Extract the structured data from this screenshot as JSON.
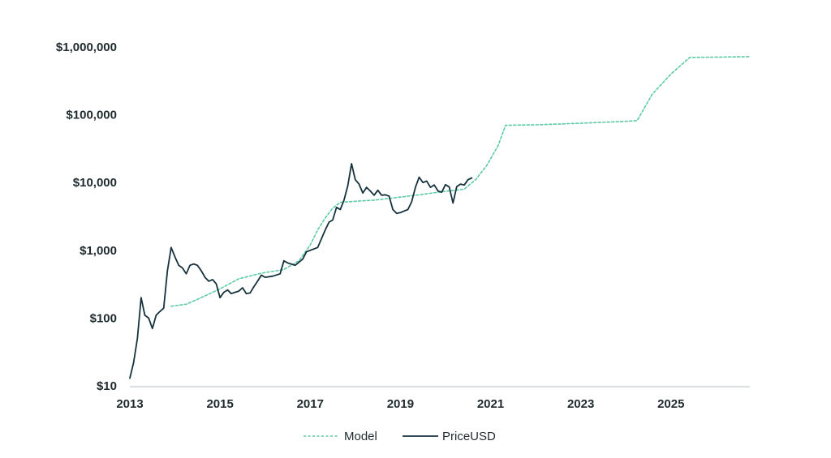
{
  "chart_data": {
    "type": "line",
    "title": "",
    "xlabel": "",
    "ylabel": "",
    "y_scale": "log",
    "ylim": [
      10,
      1000000
    ],
    "xlim": [
      "2013-01-01",
      "2026-10-01"
    ],
    "grid": false,
    "legend_position": "bottom-center",
    "colors": {
      "Model": "#5cc9a7",
      "PriceUSD": "#16323d",
      "axis": "#cfd4d6"
    },
    "line_styles": {
      "Model": "dashed",
      "PriceUSD": "solid"
    },
    "y_tick_labels": [
      "$10",
      "$100",
      "$1,000",
      "$10,000",
      "$100,000",
      "$1,000,000"
    ],
    "y_tick_values": [
      10,
      100,
      1000,
      10000,
      100000,
      1000000
    ],
    "x_tick_labels": [
      "2013",
      "2015",
      "2017",
      "2019",
      "2021",
      "2023",
      "2025"
    ],
    "x_tick_values": [
      "2013-01-01",
      "2015-01-01",
      "2017-01-01",
      "2019-01-01",
      "2021-01-01",
      "2023-01-01",
      "2025-01-01"
    ],
    "series": [
      {
        "name": "Model",
        "points": [
          [
            "2013-12-01",
            150
          ],
          [
            "2014-04-01",
            160
          ],
          [
            "2014-08-01",
            200
          ],
          [
            "2015-01-01",
            270
          ],
          [
            "2015-06-01",
            380
          ],
          [
            "2015-12-01",
            460
          ],
          [
            "2016-06-01",
            520
          ],
          [
            "2016-10-01",
            700
          ],
          [
            "2017-01-01",
            1200
          ],
          [
            "2017-03-01",
            2000
          ],
          [
            "2017-05-01",
            3000
          ],
          [
            "2017-07-01",
            4200
          ],
          [
            "2017-09-01",
            5100
          ],
          [
            "2018-01-01",
            5300
          ],
          [
            "2018-06-01",
            5500
          ],
          [
            "2018-12-01",
            6000
          ],
          [
            "2019-06-01",
            6600
          ],
          [
            "2019-12-01",
            7300
          ],
          [
            "2020-06-01",
            8000
          ],
          [
            "2020-09-01",
            11000
          ],
          [
            "2020-12-01",
            18000
          ],
          [
            "2021-03-01",
            35000
          ],
          [
            "2021-05-01",
            70000
          ],
          [
            "2022-01-01",
            71000
          ],
          [
            "2023-01-01",
            75000
          ],
          [
            "2024-01-01",
            80000
          ],
          [
            "2024-04-01",
            82000
          ],
          [
            "2024-08-01",
            200000
          ],
          [
            "2025-01-01",
            400000
          ],
          [
            "2025-06-01",
            700000
          ],
          [
            "2026-10-01",
            720000
          ]
        ]
      },
      {
        "name": "PriceUSD",
        "points": [
          [
            "2013-01-01",
            13
          ],
          [
            "2013-02-01",
            22
          ],
          [
            "2013-03-01",
            50
          ],
          [
            "2013-04-01",
            200
          ],
          [
            "2013-05-01",
            110
          ],
          [
            "2013-06-01",
            100
          ],
          [
            "2013-07-01",
            70
          ],
          [
            "2013-08-01",
            110
          ],
          [
            "2013-09-01",
            125
          ],
          [
            "2013-10-01",
            140
          ],
          [
            "2013-11-01",
            500
          ],
          [
            "2013-12-01",
            1100
          ],
          [
            "2014-01-01",
            800
          ],
          [
            "2014-02-01",
            600
          ],
          [
            "2014-03-01",
            550
          ],
          [
            "2014-04-01",
            450
          ],
          [
            "2014-05-01",
            600
          ],
          [
            "2014-06-01",
            630
          ],
          [
            "2014-07-01",
            600
          ],
          [
            "2014-08-01",
            500
          ],
          [
            "2014-09-01",
            400
          ],
          [
            "2014-10-01",
            350
          ],
          [
            "2014-11-01",
            370
          ],
          [
            "2014-12-01",
            320
          ],
          [
            "2015-01-01",
            200
          ],
          [
            "2015-02-01",
            240
          ],
          [
            "2015-03-01",
            260
          ],
          [
            "2015-04-01",
            230
          ],
          [
            "2015-05-01",
            240
          ],
          [
            "2015-06-01",
            250
          ],
          [
            "2015-07-01",
            280
          ],
          [
            "2015-08-01",
            230
          ],
          [
            "2015-09-01",
            235
          ],
          [
            "2015-10-01",
            290
          ],
          [
            "2015-11-01",
            350
          ],
          [
            "2015-12-01",
            430
          ],
          [
            "2016-01-01",
            400
          ],
          [
            "2016-03-01",
            415
          ],
          [
            "2016-05-01",
            450
          ],
          [
            "2016-06-01",
            700
          ],
          [
            "2016-07-01",
            650
          ],
          [
            "2016-09-01",
            600
          ],
          [
            "2016-11-01",
            740
          ],
          [
            "2016-12-01",
            950
          ],
          [
            "2017-01-01",
            1000
          ],
          [
            "2017-03-01",
            1100
          ],
          [
            "2017-05-01",
            2000
          ],
          [
            "2017-06-01",
            2600
          ],
          [
            "2017-07-01",
            2800
          ],
          [
            "2017-08-01",
            4300
          ],
          [
            "2017-09-01",
            4000
          ],
          [
            "2017-10-01",
            5500
          ],
          [
            "2017-11-01",
            9000
          ],
          [
            "2017-12-01",
            19000
          ],
          [
            "2018-01-01",
            11000
          ],
          [
            "2018-02-01",
            9500
          ],
          [
            "2018-03-01",
            7000
          ],
          [
            "2018-04-01",
            8500
          ],
          [
            "2018-05-01",
            7500
          ],
          [
            "2018-06-01",
            6500
          ],
          [
            "2018-07-01",
            7700
          ],
          [
            "2018-08-01",
            6500
          ],
          [
            "2018-09-01",
            6600
          ],
          [
            "2018-10-01",
            6300
          ],
          [
            "2018-11-01",
            4000
          ],
          [
            "2018-12-01",
            3500
          ],
          [
            "2019-01-01",
            3600
          ],
          [
            "2019-02-01",
            3800
          ],
          [
            "2019-03-01",
            4000
          ],
          [
            "2019-04-01",
            5200
          ],
          [
            "2019-05-01",
            8500
          ],
          [
            "2019-06-01",
            12000
          ],
          [
            "2019-07-01",
            10000
          ],
          [
            "2019-08-01",
            10500
          ],
          [
            "2019-09-01",
            8500
          ],
          [
            "2019-10-01",
            9200
          ],
          [
            "2019-11-01",
            7500
          ],
          [
            "2019-12-01",
            7200
          ],
          [
            "2020-01-01",
            9300
          ],
          [
            "2020-02-01",
            8600
          ],
          [
            "2020-03-01",
            5000
          ],
          [
            "2020-04-01",
            8700
          ],
          [
            "2020-05-01",
            9500
          ],
          [
            "2020-06-01",
            9200
          ],
          [
            "2020-07-01",
            11000
          ],
          [
            "2020-08-01",
            11700
          ]
        ]
      }
    ]
  }
}
